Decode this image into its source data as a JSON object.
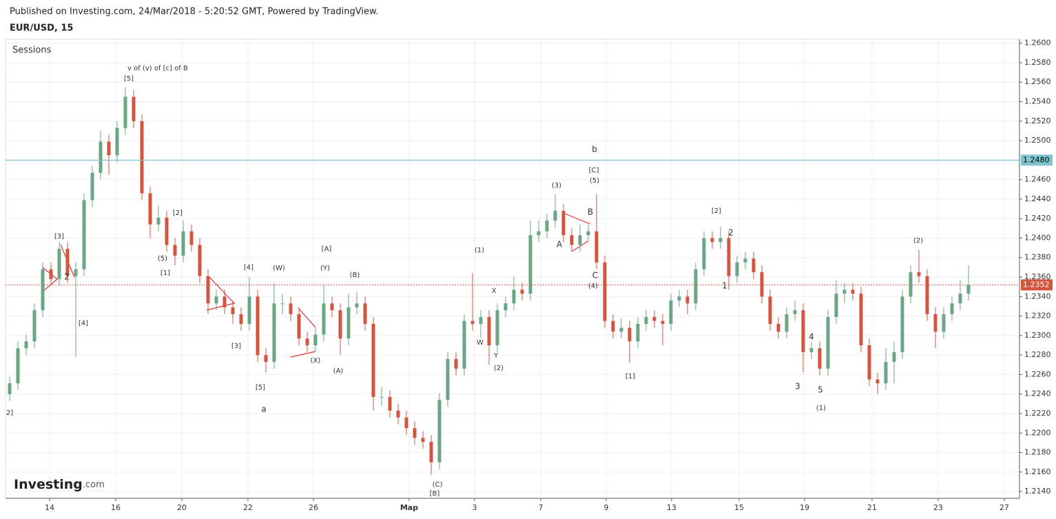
{
  "header": {
    "published": "Published on Investing.com, 24/Mar/2018 - 5:20:52 GMT, Powered by TradingView.",
    "symbol": "EUR/USD, 15"
  },
  "logo": {
    "name": "Investing",
    "suffix": ".com"
  },
  "chart_data": {
    "type": "candlestick",
    "legend": "Sessions",
    "up_color": "#6aa584",
    "down_color": "#d2553f",
    "open": [
      1.224,
      1.2251,
      1.2287,
      1.2294,
      1.2326,
      1.2368,
      1.2358,
      1.2389,
      1.2361,
      1.2368,
      1.2439,
      1.2467,
      1.2499,
      1.2485,
      1.2513,
      1.2545,
      1.252,
      1.2446,
      1.2414,
      1.2421,
      1.2393,
      1.2382,
      1.2407,
      1.2393,
      1.2361,
      1.2333,
      1.234,
      1.2329,
      1.2322,
      1.2312,
      1.234,
      1.228,
      1.2273,
      1.2333,
      1.2333,
      1.2322,
      1.2297,
      1.229,
      1.2301,
      1.2333,
      1.2326,
      1.2297,
      1.2329,
      1.2333,
      1.2312,
      1.2237,
      1.2237,
      1.2223,
      1.2216,
      1.2205,
      1.2195,
      1.2191,
      1.217,
      1.2234,
      1.2276,
      1.2266,
      1.2315,
      1.2312,
      1.2319,
      1.229,
      1.2326,
      1.2333,
      1.2347,
      1.2343,
      1.2403,
      1.2407,
      1.2418,
      1.2428,
      1.2403,
      1.2393,
      1.2403,
      1.2407,
      1.2375,
      1.2315,
      1.2304,
      1.2308,
      1.2294,
      1.2312,
      1.2319,
      1.2315,
      1.2312,
      1.2336,
      1.234,
      1.2333,
      1.2368,
      1.24,
      1.2396,
      1.24,
      1.2361,
      1.2375,
      1.2379,
      1.2365,
      1.234,
      1.2312,
      1.2304,
      1.2322,
      1.2326,
      1.2283,
      1.2287,
      1.2266,
      1.2319,
      1.2343,
      1.2347,
      1.2343,
      1.229,
      1.2255,
      1.2251,
      1.2273,
      1.2283,
      1.234,
      1.2365,
      1.2361,
      1.2322,
      1.2304,
      1.2322,
      1.2333,
      1.2343
    ],
    "high": [
      1.2258,
      1.2294,
      1.2301,
      1.2333,
      1.2375,
      1.2375,
      1.2396,
      1.2396,
      1.2375,
      1.2446,
      1.2474,
      1.251,
      1.2506,
      1.252,
      1.2555,
      1.2552,
      1.2527,
      1.2453,
      1.2433,
      1.2428,
      1.24,
      1.2418,
      1.2414,
      1.24,
      1.2368,
      1.2347,
      1.2347,
      1.2336,
      1.2329,
      1.236,
      1.2347,
      1.2287,
      1.2354,
      1.2343,
      1.234,
      1.2329,
      1.2304,
      1.2308,
      1.2352,
      1.234,
      1.2333,
      1.2343,
      1.2345,
      1.234,
      1.2319,
      1.2247,
      1.2244,
      1.223,
      1.2223,
      1.2212,
      1.2202,
      1.2198,
      1.2241,
      1.2283,
      1.2283,
      1.2322,
      1.2364,
      1.2326,
      1.2326,
      1.2333,
      1.234,
      1.2361,
      1.2354,
      1.2418,
      1.2418,
      1.2425,
      1.2445,
      1.2435,
      1.241,
      1.2414,
      1.2414,
      1.2445,
      1.2382,
      1.2322,
      1.2318,
      1.2315,
      1.2319,
      1.2326,
      1.2326,
      1.2322,
      1.2343,
      1.2347,
      1.2347,
      1.2375,
      1.2407,
      1.2407,
      1.2412,
      1.2407,
      1.2382,
      1.2386,
      1.2386,
      1.2372,
      1.2347,
      1.2319,
      1.2329,
      1.2336,
      1.2333,
      1.2294,
      1.2294,
      1.2326,
      1.2357,
      1.2354,
      1.2354,
      1.235,
      1.2297,
      1.2262,
      1.2287,
      1.2294,
      1.2347,
      1.2372,
      1.2388,
      1.2368,
      1.2329,
      1.2329,
      1.234,
      1.2357,
      1.2372
    ],
    "low": [
      1.2233,
      1.2244,
      1.228,
      1.2287,
      1.2319,
      1.2351,
      1.2351,
      1.2354,
      1.2278,
      1.2361,
      1.2432,
      1.246,
      1.2465,
      1.2478,
      1.2506,
      1.2513,
      1.2439,
      1.24,
      1.2407,
      1.2386,
      1.2372,
      1.2375,
      1.2386,
      1.2354,
      1.2322,
      1.2326,
      1.2322,
      1.2312,
      1.2305,
      1.2305,
      1.2273,
      1.2262,
      1.2266,
      1.2322,
      1.2315,
      1.229,
      1.2283,
      1.2283,
      1.2294,
      1.2319,
      1.228,
      1.229,
      1.2322,
      1.2305,
      1.2223,
      1.2228,
      1.2216,
      1.2209,
      1.2198,
      1.2188,
      1.2184,
      1.2157,
      1.2163,
      1.2227,
      1.2259,
      1.2259,
      1.2305,
      1.2298,
      1.227,
      1.2283,
      1.2319,
      1.2326,
      1.2336,
      1.2336,
      1.2396,
      1.24,
      1.2411,
      1.2396,
      1.2386,
      1.2386,
      1.2396,
      1.2368,
      1.2308,
      1.2297,
      1.2297,
      1.2272,
      1.2287,
      1.2305,
      1.2308,
      1.229,
      1.2305,
      1.2329,
      1.2322,
      1.2326,
      1.2361,
      1.2389,
      1.2389,
      1.2347,
      1.2354,
      1.2368,
      1.2358,
      1.2333,
      1.2305,
      1.2297,
      1.2297,
      1.2315,
      1.2262,
      1.2276,
      1.2259,
      1.2259,
      1.2312,
      1.2333,
      1.2336,
      1.2283,
      1.2248,
      1.224,
      1.2244,
      1.2251,
      1.2276,
      1.2333,
      1.2354,
      1.2315,
      1.2287,
      1.2297,
      1.2315,
      1.2326,
      1.2336
    ],
    "close": [
      1.2251,
      1.2287,
      1.2294,
      1.2326,
      1.2368,
      1.2358,
      1.2389,
      1.2361,
      1.2368,
      1.2439,
      1.2467,
      1.2499,
      1.2485,
      1.2513,
      1.2545,
      1.252,
      1.2446,
      1.2414,
      1.2421,
      1.2393,
      1.2382,
      1.2407,
      1.2393,
      1.2361,
      1.2333,
      1.234,
      1.2329,
      1.2322,
      1.2312,
      1.234,
      1.228,
      1.2273,
      1.2333,
      1.2333,
      1.2322,
      1.2297,
      1.229,
      1.2301,
      1.2333,
      1.2326,
      1.2297,
      1.2329,
      1.2333,
      1.2312,
      1.2237,
      1.2237,
      1.2223,
      1.2216,
      1.2205,
      1.2195,
      1.2191,
      1.217,
      1.2234,
      1.2276,
      1.2266,
      1.2315,
      1.2312,
      1.2319,
      1.229,
      1.2326,
      1.2333,
      1.2347,
      1.2343,
      1.2403,
      1.2407,
      1.2418,
      1.2428,
      1.2403,
      1.2393,
      1.2403,
      1.2407,
      1.2375,
      1.2315,
      1.2304,
      1.2308,
      1.2294,
      1.2312,
      1.2319,
      1.2315,
      1.2312,
      1.2336,
      1.234,
      1.2333,
      1.2368,
      1.24,
      1.2396,
      1.24,
      1.2361,
      1.2375,
      1.2379,
      1.2365,
      1.234,
      1.2312,
      1.2304,
      1.2322,
      1.2326,
      1.2283,
      1.2287,
      1.2266,
      1.2319,
      1.2343,
      1.2347,
      1.2343,
      1.229,
      1.2255,
      1.2251,
      1.2273,
      1.2283,
      1.234,
      1.2365,
      1.2361,
      1.2322,
      1.2304,
      1.2322,
      1.2333,
      1.2343,
      1.2352
    ],
    "last_price": 1.2352,
    "horizontal_line": {
      "value": 1.248,
      "label": "1.2480",
      "color": "#7fc4cc"
    },
    "xlim": [
      -0.5,
      122.17
    ],
    "xticks": [
      {
        "value": 4.83,
        "label": "14"
      },
      {
        "value": 12.83,
        "label": "16"
      },
      {
        "value": 20.83,
        "label": "20"
      },
      {
        "value": 28.83,
        "label": "22"
      },
      {
        "value": 36.75,
        "label": "26"
      },
      {
        "value": 48.33,
        "label": "Мар"
      },
      {
        "value": 56.25,
        "label": "3"
      },
      {
        "value": 64.25,
        "label": "7"
      },
      {
        "value": 72.17,
        "label": "9"
      },
      {
        "value": 80.08,
        "label": "13"
      },
      {
        "value": 88.25,
        "label": "15"
      },
      {
        "value": 96.17,
        "label": "19"
      },
      {
        "value": 104.33,
        "label": "21"
      },
      {
        "value": 112.33,
        "label": "23"
      },
      {
        "value": 120.33,
        "label": "27"
      }
    ],
    "ylim": [
      1.2133,
      1.2604
    ],
    "yticks": [
      {
        "value": 1.214,
        "label": "1.2140"
      },
      {
        "value": 1.216,
        "label": "1.2160"
      },
      {
        "value": 1.218,
        "label": "1.2180"
      },
      {
        "value": 1.22,
        "label": "1.2200"
      },
      {
        "value": 1.222,
        "label": "1.2220"
      },
      {
        "value": 1.224,
        "label": "1.2240"
      },
      {
        "value": 1.226,
        "label": "1.2260"
      },
      {
        "value": 1.228,
        "label": "1.2280"
      },
      {
        "value": 1.23,
        "label": "1.2300"
      },
      {
        "value": 1.232,
        "label": "1.2320"
      },
      {
        "value": 1.234,
        "label": "1.2340"
      },
      {
        "value": 1.236,
        "label": "1.2360"
      },
      {
        "value": 1.238,
        "label": "1.2380"
      },
      {
        "value": 1.24,
        "label": "1.2400"
      },
      {
        "value": 1.242,
        "label": "1.2420"
      },
      {
        "value": 1.244,
        "label": "1.2440"
      },
      {
        "value": 1.246,
        "label": "1.2460"
      },
      {
        "value": 1.25,
        "label": "1.2500"
      },
      {
        "value": 1.252,
        "label": "1.2520"
      },
      {
        "value": 1.254,
        "label": "1.2540"
      },
      {
        "value": 1.256,
        "label": "1.2560"
      },
      {
        "value": 1.258,
        "label": "1.2580"
      },
      {
        "value": 1.26,
        "label": "1.2600"
      }
    ],
    "grid": true,
    "annotations": [
      "v of (v) of [c] of B",
      "[5]",
      "[3]",
      "[4]",
      "2",
      "2]",
      "[2]",
      "(5)",
      "[1]",
      "[4]",
      "[3]",
      "[5]",
      "a",
      "(W)",
      "[A]",
      "(Y)",
      "(B)",
      "(X)",
      "(A)",
      "(C)",
      "[B]",
      "(1)",
      "X",
      "W",
      "Y",
      "(2)",
      "(3)",
      "b",
      "[C]",
      "(5)",
      "B",
      "A",
      "C",
      "(4)",
      "[1]",
      "[2]",
      "2",
      "1",
      "4",
      "3",
      "5",
      "(1)",
      "(2)"
    ]
  }
}
